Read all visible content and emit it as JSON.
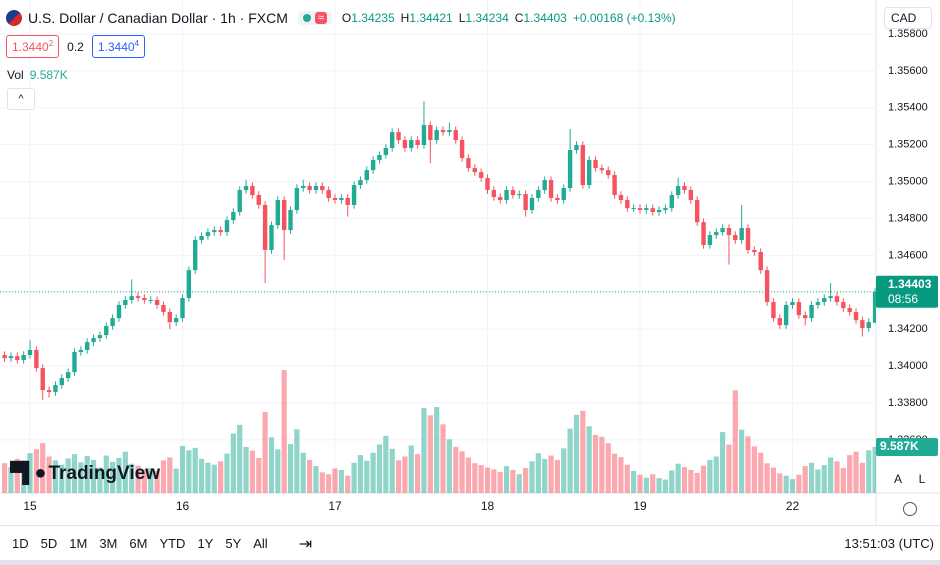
{
  "header": {
    "symbol": "U.S. Dollar / Canadian Dollar · 1h · FXCM",
    "wave": "≈",
    "ohlc": [
      {
        "key": "O",
        "value": "1.34235"
      },
      {
        "key": "H",
        "value": "1.34421"
      },
      {
        "key": "L",
        "value": "1.34234"
      },
      {
        "key": "C",
        "value": "1.34403"
      }
    ],
    "change": "+0.00168 (+0.13%)",
    "currency": "CAD"
  },
  "quote": {
    "bid": "1.3440",
    "bid_sup": "2",
    "spread": "0.2",
    "ask": "1.3440",
    "ask_sup": "4"
  },
  "volume_legend": {
    "label": "Vol",
    "value": "9.587K"
  },
  "collapse": "^",
  "logo": "TradingView",
  "scale_buttons": [
    "A",
    "L"
  ],
  "toolbar": {
    "ranges": [
      "1D",
      "5D",
      "1M",
      "3M",
      "6M",
      "YTD",
      "1Y",
      "5Y",
      "All"
    ],
    "clock": "13:51:03 (UTC)"
  },
  "chart_data": {
    "type": "candlestick",
    "up_color": "#22ab94",
    "down_color": "#f7525f",
    "grid": true,
    "ylim": [
      1.33312,
      1.35984
    ],
    "yticks": [
      {
        "value": 1.336,
        "label": "1.33600"
      },
      {
        "value": 1.338,
        "label": "1.33800"
      },
      {
        "value": 1.34,
        "label": "1.34000"
      },
      {
        "value": 1.342,
        "label": "1.34200"
      },
      {
        "value": 1.344,
        "label": "1.34400"
      },
      {
        "value": 1.346,
        "label": "1.34600"
      },
      {
        "value": 1.348,
        "label": "1.34800"
      },
      {
        "value": 1.35,
        "label": "1.35000"
      },
      {
        "value": 1.352,
        "label": "1.35200"
      },
      {
        "value": 1.354,
        "label": "1.35400"
      },
      {
        "value": 1.356,
        "label": "1.35600"
      },
      {
        "value": 1.358,
        "label": "1.35800"
      }
    ],
    "y2lim": [
      0,
      50000
    ],
    "price_tag": {
      "price": "1.34403",
      "countdown": "08:56"
    },
    "volume_tag": "9.587K",
    "categories": [
      null,
      null,
      null,
      null,
      "15",
      null,
      null,
      null,
      null,
      null,
      null,
      null,
      null,
      null,
      null,
      null,
      null,
      null,
      null,
      null,
      null,
      null,
      null,
      null,
      null,
      null,
      null,
      null,
      "16",
      null,
      null,
      null,
      null,
      null,
      null,
      null,
      null,
      null,
      null,
      null,
      null,
      null,
      null,
      null,
      null,
      null,
      null,
      null,
      null,
      null,
      null,
      null,
      "17",
      null,
      null,
      null,
      null,
      null,
      null,
      null,
      null,
      null,
      null,
      null,
      null,
      null,
      null,
      null,
      null,
      null,
      null,
      null,
      null,
      null,
      null,
      null,
      "18",
      null,
      null,
      null,
      null,
      null,
      null,
      null,
      null,
      null,
      null,
      null,
      null,
      null,
      null,
      null,
      null,
      null,
      null,
      null,
      null,
      null,
      null,
      null,
      "19",
      null,
      null,
      null,
      null,
      null,
      null,
      null,
      null,
      null,
      null,
      null,
      null,
      null,
      null,
      null,
      null,
      null,
      null,
      null,
      null,
      null,
      null,
      null,
      "22",
      null,
      null,
      null,
      null,
      null,
      null,
      null,
      null,
      null,
      null,
      null,
      null,
      null
    ],
    "open": [
      1.3406,
      1.34043,
      1.34054,
      1.34033,
      1.3406,
      1.34087,
      1.33989,
      1.3387,
      1.33859,
      1.33897,
      1.33935,
      1.33967,
      1.34076,
      1.34087,
      1.3413,
      1.34152,
      1.34168,
      1.34217,
      1.3426,
      1.34331,
      1.34358,
      1.34379,
      1.34369,
      1.34358,
      1.34358,
      1.34331,
      1.34293,
      1.34238,
      1.3426,
      1.34369,
      1.3452,
      1.34683,
      1.34705,
      1.34726,
      1.34737,
      1.34726,
      1.34791,
      1.34835,
      1.34954,
      1.34976,
      1.34927,
      1.34873,
      1.34629,
      1.34764,
      1.349,
      1.34737,
      1.34846,
      1.34965,
      1.34976,
      1.34954,
      1.34976,
      1.34954,
      1.34911,
      1.349,
      1.34911,
      1.34873,
      1.34981,
      1.35008,
      1.35062,
      1.35117,
      1.35144,
      1.35182,
      1.35268,
      1.35225,
      1.35182,
      1.35225,
      1.35198,
      1.35306,
      1.35225,
      1.35279,
      1.35268,
      1.35279,
      1.35225,
      1.35127,
      1.35073,
      1.35051,
      1.35019,
      1.34954,
      1.34916,
      1.349,
      1.34954,
      1.34927,
      1.34932,
      1.34846,
      1.34911,
      1.34954,
      1.35008,
      1.34911,
      1.349,
      1.34965,
      1.35171,
      1.35198,
      1.34981,
      1.35117,
      1.35073,
      1.35062,
      1.35035,
      1.34927,
      1.349,
      1.34856,
      1.34856,
      1.34846,
      1.34856,
      1.34835,
      1.34846,
      1.34856,
      1.34927,
      1.34976,
      1.34954,
      1.349,
      1.3478,
      1.34656,
      1.3471,
      1.34726,
      1.34748,
      1.3471,
      1.34683,
      1.34748,
      1.34629,
      1.34618,
      1.3452,
      1.34347,
      1.3426,
      1.34222,
      1.34331,
      1.34347,
      1.34276,
      1.3426,
      1.34331,
      1.34347,
      1.34369,
      1.34379,
      1.34347,
      1.34314,
      1.34293,
      1.34249,
      1.34206,
      1.34235
    ],
    "high": [
      1.3408,
      1.34074,
      1.34074,
      1.3408,
      1.3414,
      1.34107,
      1.34009,
      1.3389,
      1.33917,
      1.33955,
      1.33987,
      1.34096,
      1.34107,
      1.3415,
      1.34172,
      1.34188,
      1.34237,
      1.3428,
      1.34351,
      1.34378,
      1.3447,
      1.34399,
      1.34389,
      1.34378,
      1.34378,
      1.34351,
      1.34313,
      1.3428,
      1.34389,
      1.3454,
      1.34703,
      1.34725,
      1.34746,
      1.34757,
      1.34757,
      1.34811,
      1.34855,
      1.34974,
      1.3501,
      1.34996,
      1.34947,
      1.34893,
      1.34784,
      1.3492,
      1.3492,
      1.34866,
      1.34985,
      1.3501,
      1.34996,
      1.34996,
      1.34996,
      1.34974,
      1.34931,
      1.34931,
      1.34931,
      1.35001,
      1.35028,
      1.35082,
      1.35137,
      1.35164,
      1.35202,
      1.35288,
      1.35288,
      1.35245,
      1.35245,
      1.35245,
      1.35435,
      1.35326,
      1.35299,
      1.35299,
      1.3532,
      1.35299,
      1.35245,
      1.35147,
      1.35093,
      1.35071,
      1.35039,
      1.34974,
      1.34936,
      1.34974,
      1.34974,
      1.34952,
      1.34952,
      1.34931,
      1.34974,
      1.35028,
      1.35028,
      1.34931,
      1.34985,
      1.35285,
      1.35218,
      1.35218,
      1.35137,
      1.35137,
      1.35093,
      1.35082,
      1.35055,
      1.34947,
      1.3492,
      1.34876,
      1.34876,
      1.34876,
      1.34876,
      1.34866,
      1.34876,
      1.34947,
      1.3502,
      1.34996,
      1.34974,
      1.3492,
      1.348,
      1.3473,
      1.34746,
      1.34768,
      1.34768,
      1.3473,
      1.34873,
      1.34768,
      1.34649,
      1.34638,
      1.3454,
      1.34367,
      1.3428,
      1.34351,
      1.34367,
      1.34367,
      1.34296,
      1.34351,
      1.34367,
      1.34389,
      1.3445,
      1.34399,
      1.34367,
      1.34334,
      1.34313,
      1.34269,
      1.34258,
      1.34421
    ],
    "low": [
      1.34023,
      1.34023,
      1.34013,
      1.34013,
      1.3404,
      1.33969,
      1.33816,
      1.3383,
      1.33839,
      1.33877,
      1.33915,
      1.33947,
      1.34056,
      1.34067,
      1.3411,
      1.34132,
      1.34148,
      1.34197,
      1.3424,
      1.34311,
      1.34338,
      1.34349,
      1.34338,
      1.34338,
      1.34311,
      1.34273,
      1.342,
      1.34218,
      1.3424,
      1.34349,
      1.345,
      1.34663,
      1.34685,
      1.34706,
      1.34706,
      1.34706,
      1.34771,
      1.34815,
      1.34934,
      1.34907,
      1.34853,
      1.3445,
      1.34609,
      1.34744,
      1.34575,
      1.34717,
      1.34826,
      1.34945,
      1.34934,
      1.34934,
      1.34934,
      1.34891,
      1.3488,
      1.3488,
      1.3481,
      1.34853,
      1.34961,
      1.34988,
      1.35042,
      1.35097,
      1.35124,
      1.35162,
      1.35205,
      1.35162,
      1.35162,
      1.35178,
      1.35178,
      1.351,
      1.35205,
      1.35248,
      1.35248,
      1.35205,
      1.35107,
      1.35053,
      1.35031,
      1.34999,
      1.34934,
      1.34896,
      1.3488,
      1.3488,
      1.34907,
      1.34907,
      1.3481,
      1.34826,
      1.34891,
      1.34934,
      1.34891,
      1.3488,
      1.3488,
      1.34945,
      1.35151,
      1.34961,
      1.34961,
      1.35053,
      1.35042,
      1.35015,
      1.34907,
      1.3488,
      1.34836,
      1.34836,
      1.34826,
      1.34826,
      1.34815,
      1.34815,
      1.34826,
      1.34836,
      1.34907,
      1.34934,
      1.3488,
      1.3476,
      1.34636,
      1.34636,
      1.3469,
      1.34706,
      1.3455,
      1.34663,
      1.34663,
      1.34609,
      1.34598,
      1.345,
      1.34327,
      1.3424,
      1.34202,
      1.34202,
      1.34311,
      1.34256,
      1.3422,
      1.3424,
      1.34311,
      1.34327,
      1.34349,
      1.34327,
      1.34294,
      1.34273,
      1.34229,
      1.3416,
      1.34186,
      1.34234
    ],
    "close": [
      1.34043,
      1.34054,
      1.34033,
      1.3406,
      1.34087,
      1.33989,
      1.3387,
      1.33859,
      1.33897,
      1.33935,
      1.33967,
      1.34076,
      1.34087,
      1.3413,
      1.34152,
      1.34168,
      1.34217,
      1.3426,
      1.34331,
      1.34358,
      1.34379,
      1.34369,
      1.34358,
      1.34358,
      1.34331,
      1.34293,
      1.34238,
      1.3426,
      1.34369,
      1.3452,
      1.34683,
      1.34705,
      1.34726,
      1.34737,
      1.34726,
      1.34791,
      1.34835,
      1.34954,
      1.34976,
      1.34927,
      1.34873,
      1.34629,
      1.34764,
      1.349,
      1.34737,
      1.34846,
      1.34965,
      1.34976,
      1.34954,
      1.34976,
      1.34954,
      1.34911,
      1.349,
      1.34911,
      1.34873,
      1.34981,
      1.35008,
      1.35062,
      1.35117,
      1.35144,
      1.35182,
      1.35268,
      1.35225,
      1.35182,
      1.35225,
      1.35198,
      1.35306,
      1.35225,
      1.35279,
      1.35268,
      1.35279,
      1.35225,
      1.35127,
      1.35073,
      1.35051,
      1.35019,
      1.34954,
      1.34916,
      1.349,
      1.34954,
      1.34927,
      1.34932,
      1.34846,
      1.34911,
      1.34954,
      1.35008,
      1.34911,
      1.349,
      1.34965,
      1.35171,
      1.35198,
      1.34981,
      1.35117,
      1.35073,
      1.35062,
      1.35035,
      1.34927,
      1.349,
      1.34856,
      1.34856,
      1.34846,
      1.34856,
      1.34835,
      1.34846,
      1.34856,
      1.34927,
      1.34976,
      1.34954,
      1.349,
      1.3478,
      1.34656,
      1.3471,
      1.34726,
      1.34748,
      1.3471,
      1.34683,
      1.34748,
      1.34629,
      1.34618,
      1.3452,
      1.34347,
      1.3426,
      1.34222,
      1.34331,
      1.34347,
      1.34276,
      1.3426,
      1.34331,
      1.34347,
      1.34369,
      1.34379,
      1.34347,
      1.34314,
      1.34293,
      1.34249,
      1.34206,
      1.34238,
      1.34403
    ],
    "volume": [
      6200,
      5400,
      7100,
      5800,
      8300,
      9100,
      10400,
      7600,
      6800,
      5900,
      7200,
      8100,
      6400,
      7700,
      6900,
      5300,
      7800,
      6500,
      7300,
      8600,
      6100,
      5700,
      4900,
      5200,
      4600,
      6800,
      7400,
      5100,
      9800,
      8900,
      9400,
      7100,
      6300,
      5900,
      6600,
      8200,
      12400,
      14200,
      9600,
      8800,
      7300,
      16900,
      11600,
      9100,
      25600,
      10200,
      13300,
      8400,
      6900,
      5600,
      4300,
      3900,
      5100,
      4800,
      3600,
      6300,
      7900,
      6700,
      8400,
      10100,
      11900,
      9200,
      6800,
      7600,
      9900,
      8100,
      17700,
      16200,
      17900,
      14300,
      11200,
      9600,
      8700,
      7400,
      6200,
      5800,
      5300,
      4900,
      4400,
      5600,
      4800,
      3900,
      5200,
      6600,
      8300,
      7100,
      7800,
      6900,
      9300,
      13400,
      16300,
      17100,
      13900,
      12100,
      11700,
      10400,
      8200,
      7500,
      5900,
      4600,
      3800,
      3200,
      3900,
      3100,
      2800,
      4700,
      6100,
      5400,
      4800,
      4200,
      5700,
      6900,
      7600,
      12700,
      10100,
      21400,
      13200,
      11800,
      9700,
      8400,
      6200,
      5300,
      4100,
      3600,
      2900,
      3800,
      5600,
      6300,
      4900,
      5800,
      7400,
      6600,
      5200,
      7900,
      8600,
      6300,
      8900,
      9587
    ]
  }
}
